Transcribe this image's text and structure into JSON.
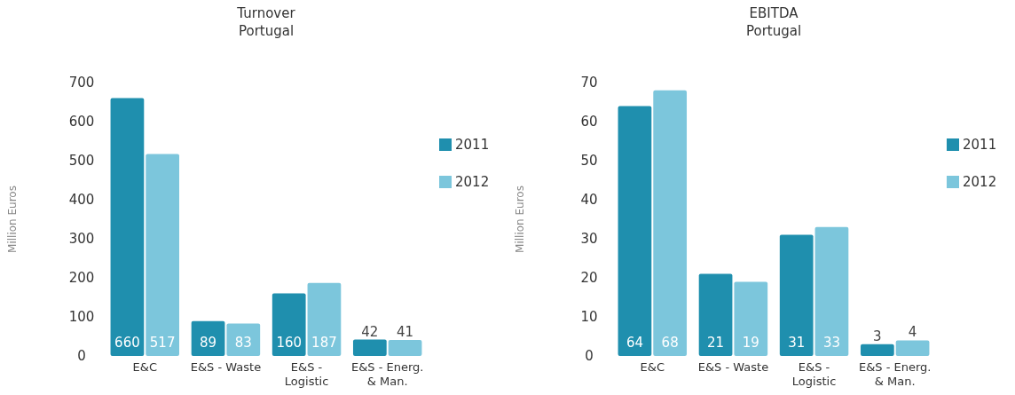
{
  "chart_data": [
    {
      "type": "bar",
      "title": "Turnover\nPortugal",
      "ylabel": "Million  Euros",
      "categories": [
        "E&C",
        "E&S - Waste",
        "E&S -\nLogistic",
        "E&S - Energ.\n& Man."
      ],
      "series": [
        {
          "name": "2011",
          "color": "#1f8fae",
          "values": [
            660,
            89,
            160,
            42
          ]
        },
        {
          "name": "2012",
          "color": "#7cc6dc",
          "values": [
            517,
            83,
            187,
            41
          ]
        }
      ],
      "ylim": [
        0,
        700
      ],
      "yticks": [
        0,
        100,
        200,
        300,
        400,
        500,
        600,
        700
      ],
      "grid": false,
      "legend": "right",
      "data_labels": true
    },
    {
      "type": "bar",
      "title": "EBITDA\nPortugal",
      "ylabel": "Million  Euros",
      "categories": [
        "E&C",
        "E&S - Waste",
        "E&S -\nLogistic",
        "E&S - Energ.\n& Man."
      ],
      "series": [
        {
          "name": "2011",
          "color": "#1f8fae",
          "values": [
            64,
            21,
            31,
            3
          ]
        },
        {
          "name": "2012",
          "color": "#7cc6dc",
          "values": [
            68,
            19,
            33,
            4
          ]
        }
      ],
      "ylim": [
        0,
        70
      ],
      "yticks": [
        0,
        10,
        20,
        30,
        40,
        50,
        60,
        70
      ],
      "grid": false,
      "legend": "right",
      "data_labels": true
    }
  ]
}
